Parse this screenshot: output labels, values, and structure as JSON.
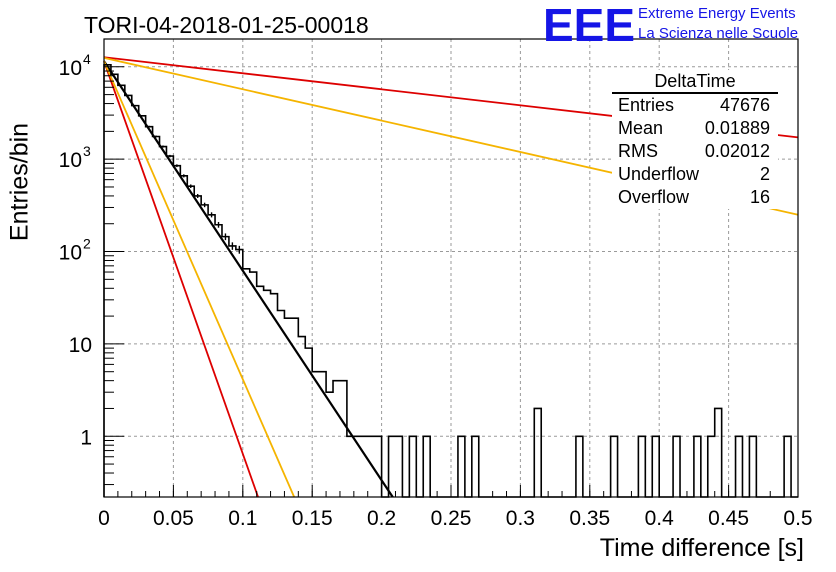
{
  "title": "TORI-04-2018-01-25-00018",
  "logo": {
    "mark": "EEE",
    "line1": "Extreme Energy Events",
    "line2": "La Scienza nelle Scuole",
    "color": "#1515e6"
  },
  "stats": {
    "title": "DeltaTime",
    "rows": [
      {
        "label": "Entries",
        "value": "47676"
      },
      {
        "label": "Mean",
        "value": "0.01889"
      },
      {
        "label": "RMS",
        "value": "0.02012"
      },
      {
        "label": "Underflow",
        "value": "2"
      },
      {
        "label": "Overflow",
        "value": "16"
      }
    ]
  },
  "chart_data": {
    "type": "histogram",
    "xlabel": "Time difference [s]",
    "ylabel": "Entries/bin",
    "xlim": [
      0,
      0.5
    ],
    "ylim": [
      0.22,
      20000
    ],
    "yscale": "log",
    "grid": true,
    "xticks": [
      "0",
      "0.05",
      "0.1",
      "0.15",
      "0.2",
      "0.25",
      "0.3",
      "0.35",
      "0.4",
      "0.45",
      "0.5"
    ],
    "yticks": [
      {
        "value": 1,
        "label": "1"
      },
      {
        "value": 10,
        "label": "10"
      },
      {
        "value": 100,
        "label": "10",
        "exp": "2"
      },
      {
        "value": 1000,
        "label": "10",
        "exp": "3"
      },
      {
        "value": 10000,
        "label": "10",
        "exp": "4"
      }
    ],
    "bin_width": 0.005,
    "histogram": {
      "color": "#000000",
      "bins": [
        [
          0.0,
          10500
        ],
        [
          0.005,
          8300
        ],
        [
          0.01,
          6300
        ],
        [
          0.015,
          4900
        ],
        [
          0.02,
          3800
        ],
        [
          0.025,
          2950
        ],
        [
          0.03,
          2250
        ],
        [
          0.035,
          1760
        ],
        [
          0.04,
          1370
        ],
        [
          0.045,
          1080
        ],
        [
          0.05,
          850
        ],
        [
          0.055,
          660
        ],
        [
          0.06,
          510
        ],
        [
          0.065,
          400
        ],
        [
          0.07,
          320
        ],
        [
          0.075,
          250
        ],
        [
          0.08,
          195
        ],
        [
          0.085,
          145
        ],
        [
          0.09,
          115
        ],
        [
          0.095,
          105
        ],
        [
          0.1,
          65
        ],
        [
          0.105,
          60
        ],
        [
          0.11,
          42
        ],
        [
          0.115,
          38
        ],
        [
          0.12,
          35
        ],
        [
          0.125,
          23
        ],
        [
          0.13,
          19
        ],
        [
          0.135,
          19
        ],
        [
          0.14,
          12
        ],
        [
          0.145,
          9
        ],
        [
          0.15,
          5
        ],
        [
          0.155,
          5
        ],
        [
          0.16,
          3
        ],
        [
          0.165,
          4
        ],
        [
          0.17,
          4
        ],
        [
          0.175,
          1
        ],
        [
          0.18,
          1
        ],
        [
          0.185,
          1
        ],
        [
          0.19,
          1
        ],
        [
          0.195,
          1
        ],
        [
          0.205,
          1
        ],
        [
          0.21,
          1
        ],
        [
          0.22,
          1
        ],
        [
          0.23,
          1
        ],
        [
          0.255,
          1
        ],
        [
          0.265,
          1
        ],
        [
          0.31,
          2
        ],
        [
          0.34,
          1
        ],
        [
          0.365,
          1
        ],
        [
          0.385,
          1
        ],
        [
          0.395,
          1
        ],
        [
          0.41,
          1
        ],
        [
          0.425,
          1
        ],
        [
          0.435,
          1
        ],
        [
          0.44,
          2
        ],
        [
          0.455,
          1
        ],
        [
          0.465,
          1
        ],
        [
          0.49,
          1
        ]
      ]
    },
    "curves": [
      {
        "color": "#000000",
        "width": 2.2,
        "points": [
          [
            0.0,
            11500
          ],
          [
            0.208,
            0.22
          ]
        ]
      },
      {
        "color": "#dd0000",
        "width": 1.8,
        "points": [
          [
            0.0,
            11500
          ],
          [
            0.111,
            0.22
          ]
        ]
      },
      {
        "color": "#f5b400",
        "width": 1.8,
        "points": [
          [
            0.0,
            11500
          ],
          [
            0.137,
            0.22
          ]
        ]
      },
      {
        "color": "#dd0000",
        "width": 1.8,
        "points": [
          [
            0.0,
            12700
          ],
          [
            0.5,
            1720
          ]
        ]
      },
      {
        "color": "#f5b400",
        "width": 1.8,
        "points": [
          [
            0.0,
            12500
          ],
          [
            0.5,
            250
          ]
        ]
      }
    ]
  }
}
